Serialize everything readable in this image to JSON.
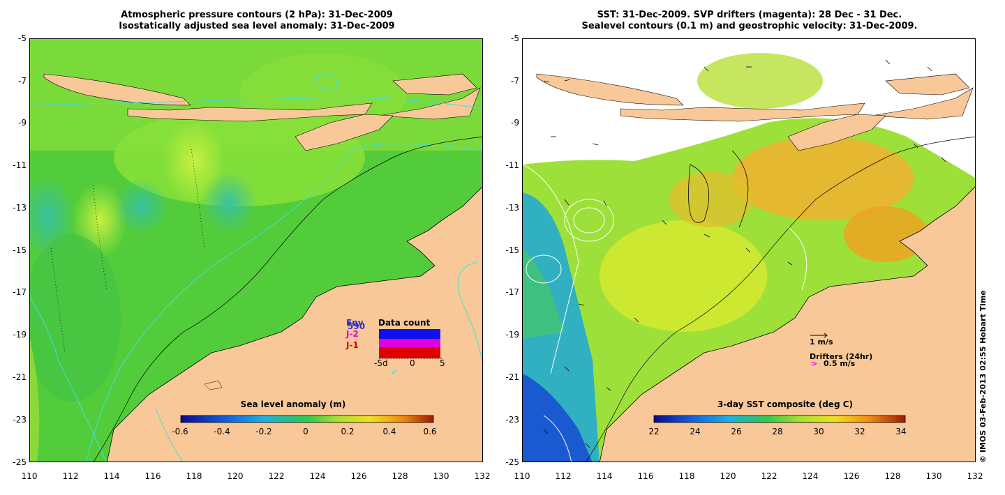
{
  "left_panel": {
    "title_line1": "Atmospheric pressure contours (2 hPa): 31-Dec-2009",
    "title_line2": "Isostatically adjusted sea level anomaly: 31-Dec-2009",
    "colorbar_title": "Sea level anomaly (m)",
    "colorbar_ticks": [
      "-0.6",
      "-0.4",
      "-0.2",
      "0",
      "0.2",
      "0.4",
      "0.6"
    ],
    "data_count": {
      "title": "Data count",
      "labels": [
        "Env",
        "J-2",
        "J-1"
      ],
      "overlay_label": "590",
      "x_ticks": [
        "-5d",
        "0",
        "5"
      ],
      "label_colors": [
        "#3030c8",
        "#e000e0",
        "#e00000"
      ]
    }
  },
  "right_panel": {
    "title_line1": "SST: 31-Dec-2009. SVP drifters (magenta): 28 Dec - 31 Dec.",
    "title_line2": "Sealevel contours (0.1 m) and geostrophic velocity: 31-Dec-2009.",
    "colorbar_title": "3-day SST composite (deg C)",
    "colorbar_ticks": [
      "22",
      "24",
      "26",
      "28",
      "30",
      "32",
      "34"
    ],
    "velocity_scale_label": "1 m/s",
    "drifters_label": "Drifters (24hr)",
    "drifter_symbol": ">",
    "drifter_speed_label": "0.5 m/s"
  },
  "y_ticks": [
    "-5",
    "-7",
    "-9",
    "-11",
    "-13",
    "-15",
    "-17",
    "-19",
    "-21",
    "-23",
    "-25"
  ],
  "x_ticks": [
    "110",
    "112",
    "114",
    "116",
    "118",
    "120",
    "122",
    "124",
    "126",
    "128",
    "130",
    "132"
  ],
  "copyright": "© IMOS 03-Feb-2013 02:55 Hobart Time",
  "colors": {
    "land": "#f8c898",
    "ocean_green": "#3ec83a",
    "ocean_light": "#9ee63a",
    "contour_cyan": "#40e0e0"
  }
}
